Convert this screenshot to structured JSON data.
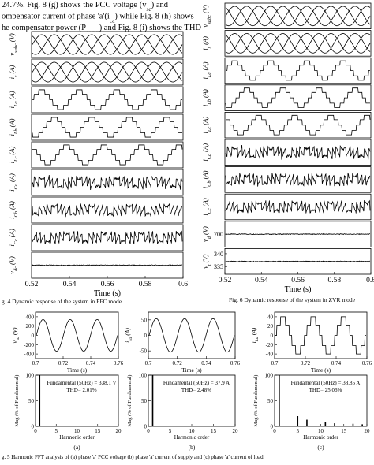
{
  "paragraph": [
    [
      "24.7%. Fig. 8 (g) shows the PCC voltage (v",
      "sc",
      ") and"
    ],
    [
      "ompensator current of phase 'a'(i",
      "ca",
      ") while Fig. 8 (h) shows"
    ],
    [
      "he compensator power (P",
      "comp",
      ") and Fig. 8 (i) shows the THD"
    ]
  ],
  "fig4": {
    "strips": [
      {
        "sym": "v",
        "sub": "sabc",
        "unit": "(V)"
      },
      {
        "sym": "i",
        "sub": "s",
        "unit": "(A)"
      },
      {
        "sym": "i",
        "sub": "La",
        "unit": "(A)"
      },
      {
        "sym": "i",
        "sub": "Lb",
        "unit": "(A)"
      },
      {
        "sym": "i",
        "sub": "Lc",
        "unit": "(A)"
      },
      {
        "sym": "i",
        "sub": "Ca",
        "unit": "(A)"
      },
      {
        "sym": "i",
        "sub": "Cb",
        "unit": "(A)"
      },
      {
        "sym": "i",
        "sub": "Cc",
        "unit": "(A)"
      },
      {
        "sym": "v",
        "sub": "dc",
        "unit": "(V)"
      }
    ],
    "xlim": [
      0.52,
      0.6
    ],
    "xticks": [
      0.52,
      0.54,
      0.56,
      0.58,
      0.6
    ],
    "xlabel": "Time (s)",
    "caption": "g. 4 Dynamic response of the system in PFC mode"
  },
  "fig6": {
    "strips": [
      {
        "sym": "v",
        "sub": "sabc",
        "unit": "(V)"
      },
      {
        "sym": "i",
        "sub": "s",
        "unit": "(A)"
      },
      {
        "sym": "i",
        "sub": "La",
        "unit": "(A)"
      },
      {
        "sym": "i",
        "sub": "Lb",
        "unit": "(A)"
      },
      {
        "sym": "i",
        "sub": "Lc",
        "unit": "(A)"
      },
      {
        "sym": "i",
        "sub": "Ca",
        "unit": "(A)"
      },
      {
        "sym": "i",
        "sub": "Cb",
        "unit": "(A)"
      },
      {
        "sym": "i",
        "sub": "Cc",
        "unit": "(A)"
      },
      {
        "sym": "v",
        "sub": "d",
        "unit": "(V)",
        "ylim": [
          650,
          750
        ],
        "yticks": [
          700
        ]
      },
      {
        "sym": "v",
        "sub": "t",
        "unit": "(V)",
        "ylim": [
          332,
          342
        ],
        "yticks": [
          340,
          335
        ]
      }
    ],
    "xlim": [
      0.52,
      0.6
    ],
    "xticks": [
      0.52,
      0.54,
      0.56,
      0.58,
      0.6
    ],
    "xlabel": "Time (s)",
    "caption": "Fig. 6 Dynamic response of the system in ZVR mode"
  },
  "fig5": {
    "panels": [
      {
        "sym": "v",
        "sub": "sa",
        "unit": "(V)",
        "ylim": [
          -500,
          500
        ],
        "yticks": [
          400,
          200,
          0,
          -200,
          -400
        ],
        "xlim": [
          0.7,
          0.76
        ],
        "xticks": [
          0.7,
          0.72,
          0.74,
          0.76
        ],
        "xlabel": "Time (s)",
        "letter": "(a)",
        "spectrum": {
          "ylabel": "Mag (% of Fundamental)",
          "ylim": [
            0,
            100
          ],
          "yticks": [
            0,
            50,
            100
          ],
          "xlim": [
            0,
            20
          ],
          "xticks": [
            0,
            5,
            10,
            15,
            20
          ],
          "xlabel": "Harmonic order",
          "fundamental": "Fundamental (50Hz) = 338.1 V",
          "thd": "THD= 2.01%",
          "orders": [
            1
          ],
          "mags": [
            100
          ]
        }
      },
      {
        "sym": "i",
        "sub": "sa",
        "unit": "(A)",
        "ylim": [
          -75,
          75
        ],
        "yticks": [
          50,
          0,
          -50
        ],
        "xlim": [
          0.7,
          0.76
        ],
        "xticks": [
          0.7,
          0.72,
          0.74,
          0.76
        ],
        "xlabel": "Time (s)",
        "letter": "(b)",
        "spectrum": {
          "ylabel": "Mag (% of Fundamental)",
          "ylim": [
            0,
            100
          ],
          "yticks": [
            0,
            50,
            100
          ],
          "xlim": [
            0,
            20
          ],
          "xticks": [
            0,
            5,
            10,
            15,
            20
          ],
          "xlabel": "Harmonic order",
          "fundamental": "Fundamental (50Hz) = 37.9 A",
          "thd": "THD= 2.48%",
          "orders": [
            1
          ],
          "mags": [
            100
          ]
        }
      },
      {
        "sym": "i",
        "sub": "La",
        "unit": "(A)",
        "ylim": [
          -50,
          50
        ],
        "yticks": [
          40,
          20,
          0,
          -20,
          -40
        ],
        "xlim": [
          0.7,
          0.76
        ],
        "xticks": [
          0.7,
          0.72,
          0.74,
          0.76
        ],
        "xlabel": "Time (s)",
        "letter": "(c)",
        "spectrum": {
          "ylabel": "Mag (% of Fundamental)",
          "ylim": [
            0,
            100
          ],
          "yticks": [
            0,
            50,
            100
          ],
          "xlim": [
            0,
            20
          ],
          "xticks": [
            0,
            5,
            10,
            15,
            20
          ],
          "xlabel": "Harmonic order",
          "fundamental": "Fundamental (50Hz) = 38.85 A",
          "thd": "THD= 25.06%",
          "orders": [
            1,
            5,
            7,
            11,
            13,
            17,
            19
          ],
          "mags": [
            100,
            20,
            13,
            8,
            6,
            5,
            4
          ]
        }
      }
    ],
    "caption": "g. 5 Harmonic FFT analysis of (a) phase 'a' PCC voltage (b) phase 'a' current of supply and (c) phase 'a' current of load."
  }
}
